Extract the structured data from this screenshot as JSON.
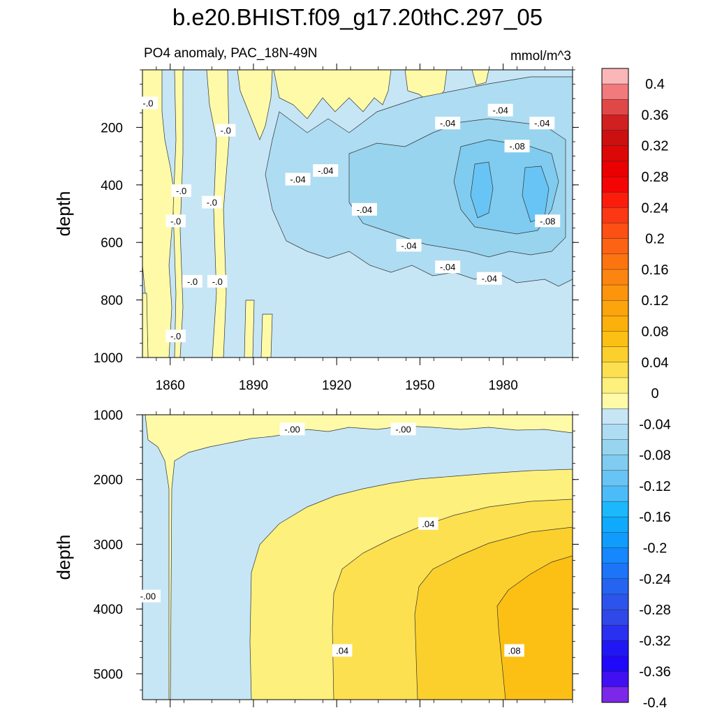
{
  "chart_data": {
    "type": "heatmap",
    "title": "b.e20.BHIST.f09_g17.20thC.297_05",
    "subtitle_left": "PO4 anomaly, PAC_18N-49N",
    "subtitle_right": "mmol/m^3",
    "xlim": [
      1850,
      2005
    ],
    "x_ticks": [
      1860,
      1890,
      1920,
      1950,
      1980
    ],
    "x_tick_labels": [
      "1860",
      "1890",
      "1920",
      "1950",
      "1980"
    ],
    "panels": [
      {
        "name": "upper",
        "ylabel": "depth",
        "ylim": [
          0,
          1000
        ],
        "y_ticks": [
          200,
          400,
          600,
          800,
          1000
        ],
        "y_tick_labels": [
          "200",
          "400",
          "600",
          "800",
          "1000"
        ],
        "contour_labels": [
          {
            "text": "-.0",
            "x": 1852,
            "y": 115
          },
          {
            "text": "-.0",
            "x": 1880,
            "y": 210
          },
          {
            "text": "-.0",
            "x": 1864,
            "y": 420
          },
          {
            "text": "-.0",
            "x": 1875,
            "y": 460
          },
          {
            "text": "-.0",
            "x": 1862,
            "y": 525
          },
          {
            "text": "-.0",
            "x": 1868,
            "y": 735
          },
          {
            "text": "-.0",
            "x": 1877,
            "y": 735
          },
          {
            "text": "-.0",
            "x": 1862,
            "y": 925
          },
          {
            "text": "-.04",
            "x": 1906,
            "y": 380
          },
          {
            "text": "-.04",
            "x": 1916,
            "y": 350
          },
          {
            "text": "-.04",
            "x": 1930,
            "y": 485
          },
          {
            "text": "-.04",
            "x": 1946,
            "y": 610
          },
          {
            "text": "-.04",
            "x": 1960,
            "y": 185
          },
          {
            "text": "-.04",
            "x": 1979,
            "y": 140
          },
          {
            "text": "-.04",
            "x": 1994,
            "y": 185
          },
          {
            "text": "-.04",
            "x": 1960,
            "y": 685
          },
          {
            "text": "-.04",
            "x": 1975,
            "y": 725
          },
          {
            "text": "-.08",
            "x": 1985,
            "y": 265
          },
          {
            "text": "-.08",
            "x": 1996,
            "y": 525
          }
        ]
      },
      {
        "name": "lower",
        "ylabel": "depth",
        "ylim": [
          1000,
          5400
        ],
        "y_ticks": [
          1000,
          2000,
          3000,
          4000,
          5000
        ],
        "y_tick_labels": [
          "1000",
          "2000",
          "3000",
          "4000",
          "5000"
        ],
        "contour_labels": [
          {
            "text": "-.00",
            "x": 1904,
            "y": 1220
          },
          {
            "text": "-.00",
            "x": 1944,
            "y": 1220
          },
          {
            "text": "-.00",
            "x": 1852,
            "y": 3800
          },
          {
            "text": ".04",
            "x": 1953,
            "y": 2680
          },
          {
            "text": ".04",
            "x": 1922,
            "y": 4640
          },
          {
            "text": ".08",
            "x": 1984,
            "y": 4640
          }
        ]
      }
    ],
    "colorbar": {
      "levels": [
        -0.4,
        -0.38,
        -0.36,
        -0.34,
        -0.32,
        -0.3,
        -0.28,
        -0.26,
        -0.24,
        -0.22,
        -0.2,
        -0.18,
        -0.16,
        -0.14,
        -0.12,
        -0.1,
        -0.08,
        -0.06,
        -0.04,
        -0.02,
        0,
        0.02,
        0.04,
        0.06,
        0.08,
        0.1,
        0.12,
        0.14,
        0.16,
        0.18,
        0.2,
        0.22,
        0.24,
        0.26,
        0.28,
        0.3,
        0.32,
        0.34,
        0.36,
        0.38,
        0.4
      ],
      "tick_labels": [
        "0.4",
        "0.36",
        "0.32",
        "0.28",
        "0.24",
        "0.2",
        "0.16",
        "0.12",
        "0.08",
        "0.04",
        "0",
        "-0.04",
        "-0.08",
        "-0.12",
        "-0.16",
        "-0.2",
        "-0.24",
        "-0.28",
        "-0.32",
        "-0.36",
        "-0.4"
      ],
      "colors_top_to_bottom": [
        "#fbb6b8",
        "#f07a7c",
        "#e04848",
        "#d02020",
        "#cc1010",
        "#dc0808",
        "#ea0000",
        "#f40404",
        "#fc1c0c",
        "#fc3814",
        "#fc5014",
        "#fc6414",
        "#fc7410",
        "#fc8410",
        "#fc940c",
        "#fca40c",
        "#fcb00c",
        "#fcc014",
        "#fcd02c",
        "#fde050",
        "#fef07c",
        "#fefaa8",
        "#c6e6f6",
        "#aedcf2",
        "#98d4ee",
        "#80ccf0",
        "#68c4f4",
        "#4cbcf8",
        "#1cb8fc",
        "#10aafc",
        "#109cfc",
        "#1488fc",
        "#1c74f8",
        "#2464f0",
        "#2c54ec",
        "#3048e8",
        "#2a30f0",
        "#2018f4",
        "#2008f8",
        "#4010f0",
        "#7c28e8"
      ]
    }
  }
}
